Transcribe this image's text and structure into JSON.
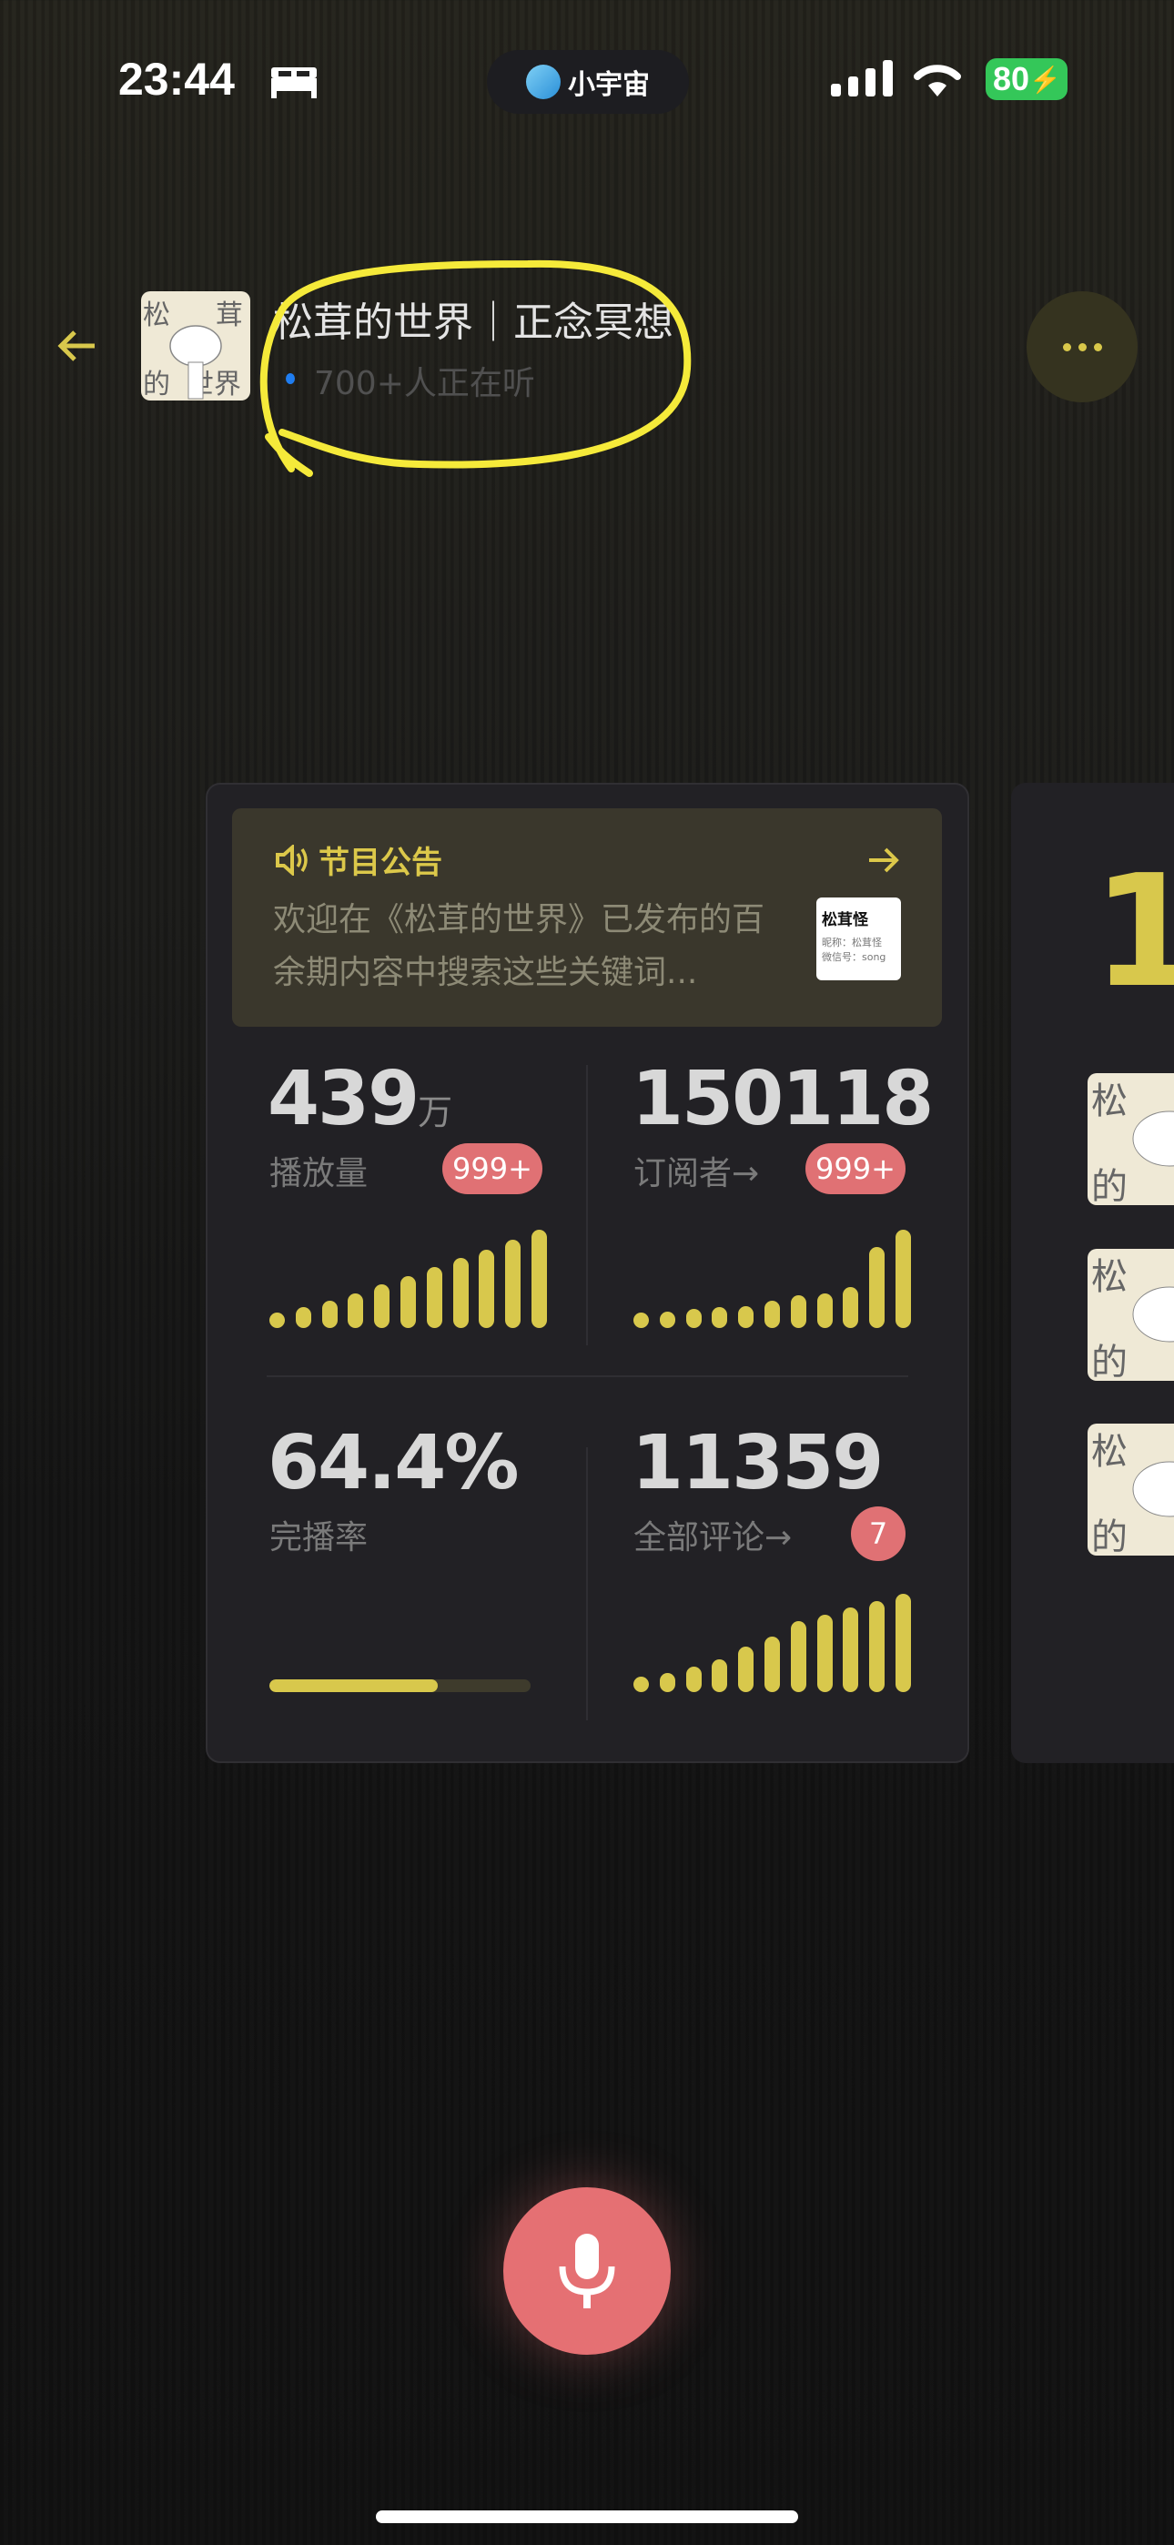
{
  "status_bar": {
    "time": "23:44",
    "island_app": "小宇宙",
    "battery": "80",
    "icons": [
      "bed-icon",
      "signal-icon",
      "wifi-icon",
      "battery-charging-icon"
    ]
  },
  "header": {
    "title": "松茸的世界｜正念冥想",
    "listeners": "700+人正在听",
    "avatar_text": [
      "松",
      "茸",
      "的",
      "世界"
    ],
    "back_icon": "arrow-left-icon",
    "more_icon": "ellipsis-icon"
  },
  "announcement": {
    "title": "节目公告",
    "text": "欢迎在《松茸的世界》已发布的百余期内容中搜索这些关键词...",
    "thumb_title": "松茸怪",
    "thumb_line1": "昵称：松茸怪",
    "thumb_line2": "微信号：song"
  },
  "stats": {
    "plays": {
      "value": "439",
      "unit": "万",
      "label": "播放量",
      "badge": "999+",
      "bars": [
        22,
        34,
        44,
        56,
        70,
        83,
        98,
        112,
        126,
        142,
        158
      ]
    },
    "subscribers": {
      "value": "150118",
      "label": "订阅者→",
      "badge": "999+",
      "bars": [
        22,
        27,
        31,
        33,
        35,
        44,
        52,
        56,
        66,
        130,
        158
      ]
    },
    "completion": {
      "value": "64.4%",
      "label": "完播率",
      "progress": 64.4
    },
    "comments": {
      "value": "11359",
      "label": "全部评论→",
      "badge": "7",
      "bars": [
        21,
        31,
        41,
        53,
        73,
        88,
        113,
        123,
        135,
        145,
        157
      ]
    }
  },
  "next_card": {
    "big_text": "1",
    "avatar_char": "松"
  },
  "colors": {
    "accent": "#d8c84c",
    "badge": "#e07174",
    "mic": "#e57073",
    "annotation": "#f5ea3a"
  }
}
